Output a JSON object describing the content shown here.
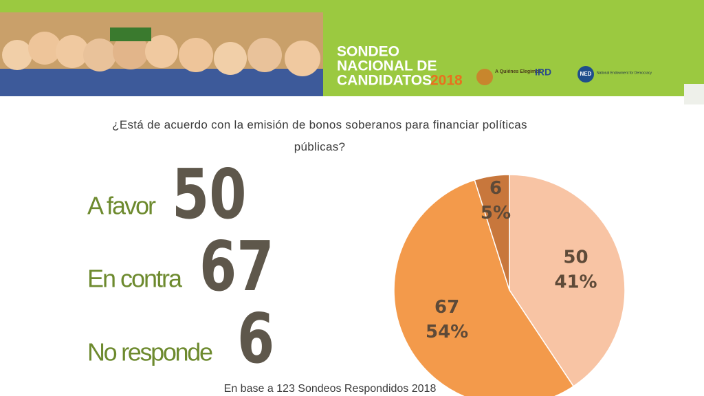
{
  "header": {
    "line1": "SONDEO",
    "line2": "NACIONAL DE",
    "line3": "CANDIDATOS",
    "year": "2018",
    "logo1": "A Quiénes Elegimos",
    "logo2": "IRD",
    "logo3": "NED",
    "logo3_text": "National Endowment for Democracy"
  },
  "chart_data": {
    "type": "pie",
    "title": "¿Está de acuerdo con la emisión de bonos soberanos para financiar políticas públicas?",
    "categories": [
      "A favor",
      "En contra",
      "No responde"
    ],
    "values": [
      50,
      67,
      6
    ],
    "percent_labels": [
      "41%",
      "54%",
      "5%"
    ],
    "colors": [
      "#f8c4a4",
      "#f39a4b",
      "#c8773c"
    ]
  },
  "footer": "En base a 123 Sondeos Respondidos 2018"
}
